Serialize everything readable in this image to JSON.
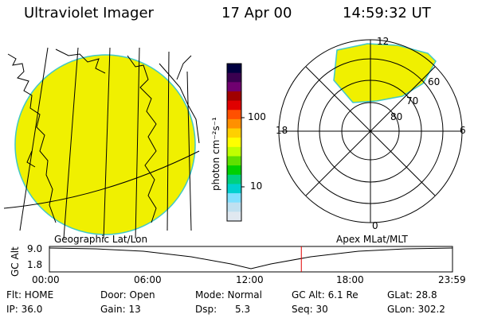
{
  "header": {
    "title": "Ultraviolet Imager",
    "date": "17 Apr 00",
    "time": "14:59:32 UT"
  },
  "colorbar": {
    "unit_label": "photon cm⁻²s⁻¹",
    "ticks": [
      "100",
      "10"
    ],
    "colors": [
      "#000040",
      "#3a0050",
      "#700070",
      "#a00000",
      "#e00000",
      "#ff5000",
      "#ff9000",
      "#ffd000",
      "#ffff00",
      "#c0ff00",
      "#60e000",
      "#00d000",
      "#00d080",
      "#00d0d0",
      "#80e0ff",
      "#c0e0f0",
      "#e0e8f0"
    ]
  },
  "polar": {
    "labels": {
      "top": "12",
      "bottom": "0",
      "left": "18",
      "right": "6"
    },
    "rings": [
      "60",
      "70",
      "80"
    ]
  },
  "timeline": {
    "ylabel": "GC Alt",
    "y_ticks": [
      "9.0",
      "1.8"
    ],
    "left_caption": "Geographic Lat/Lon",
    "right_caption": "Apex MLat/MLT",
    "x_ticks": [
      "00:00",
      "06:00",
      "12:00",
      "18:00",
      "23:59"
    ],
    "current_marker_hour": 15.0
  },
  "info": {
    "row1": [
      "Flt: HOME",
      "Door: Open",
      "Mode: Normal",
      "GC Alt: 6.1 Re",
      "GLat: 28.8"
    ],
    "row2": [
      "IP: 36.0",
      "Gain: 13",
      "Dsp:      5.3",
      "Seq: 30",
      "GLon: 302.2"
    ]
  },
  "colors": {
    "image_fill": "#f0f000",
    "image_edge": "#40c8c8",
    "marker": "#e00000"
  }
}
